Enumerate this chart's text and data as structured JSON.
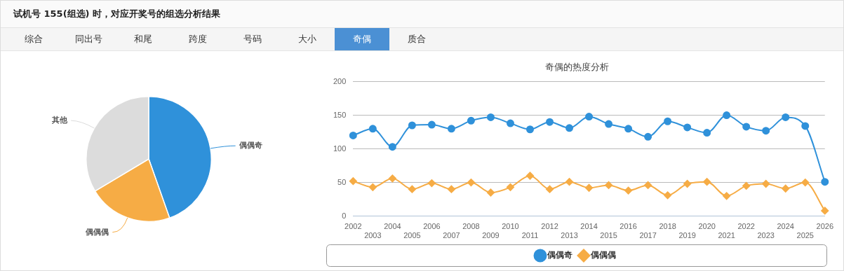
{
  "chart_data": [
    {
      "type": "other",
      "title": "试机号 155(组选) 时，对应开奖号的组选分析结果",
      "annotations": [
        "综合",
        "同出号",
        "和尾",
        "跨度",
        "号码",
        "大小",
        "奇偶",
        "质合"
      ]
    },
    {
      "type": "pie",
      "categories": [
        "偶偶奇",
        "偶偶偶",
        "其他"
      ],
      "values": [
        44.6,
        21.8,
        33.6
      ],
      "colors": [
        "#2f91da",
        "#f6ac45",
        "#dcdcdc"
      ],
      "legend": false
    },
    {
      "type": "line",
      "title": "奇偶的热度分析",
      "categories": [
        "2002",
        "2003",
        "2004",
        "2005",
        "2006",
        "2007",
        "2008",
        "2009",
        "2010",
        "2011",
        "2012",
        "2013",
        "2014",
        "2015",
        "2016",
        "2017",
        "2018",
        "2019",
        "2020",
        "2021",
        "2022",
        "2023",
        "2024",
        "2025",
        "2026"
      ],
      "series": [
        {
          "name": "偶偶奇",
          "color": "#2f91da",
          "marker": "circle",
          "values": [
            120,
            130,
            103,
            135,
            136,
            130,
            142,
            147,
            138,
            129,
            140,
            131,
            148,
            137,
            130,
            118,
            141,
            132,
            124,
            150,
            133,
            127,
            147,
            134,
            51
          ]
        },
        {
          "name": "偶偶偶",
          "color": "#f6ac45",
          "marker": "diamond",
          "values": [
            52,
            43,
            56,
            40,
            49,
            40,
            50,
            35,
            43,
            60,
            40,
            51,
            42,
            46,
            38,
            46,
            31,
            48,
            51,
            30,
            45,
            48,
            41,
            50,
            8
          ]
        }
      ],
      "ylim": [
        0,
        200
      ],
      "yticks": [
        0,
        50,
        100,
        150,
        200
      ],
      "grid": "y",
      "legend": "bottom"
    }
  ]
}
